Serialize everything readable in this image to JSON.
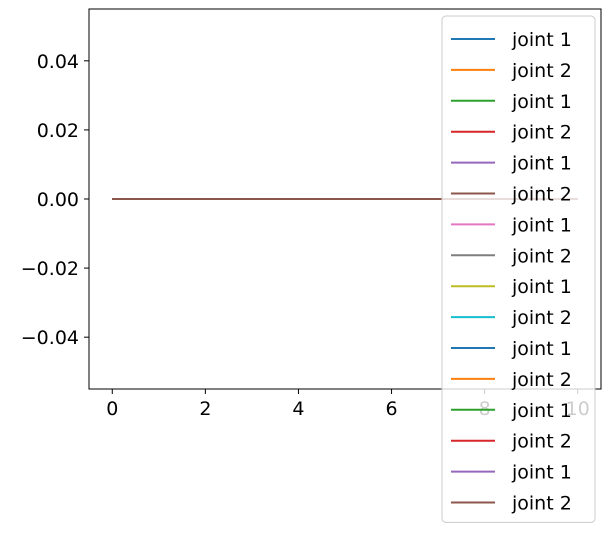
{
  "chart_data": {
    "type": "line",
    "title": "",
    "xlabel": "",
    "ylabel": "",
    "x": [
      0,
      1,
      2,
      3,
      4,
      5,
      6,
      7,
      8,
      9,
      10
    ],
    "xlim": [
      -0.5,
      10.5
    ],
    "ylim": [
      -0.055,
      0.055
    ],
    "x_ticks": [
      0,
      2,
      4,
      6,
      8,
      10
    ],
    "x_tick_labels": [
      "0",
      "2",
      "4",
      "6",
      "8",
      "10"
    ],
    "y_ticks": [
      0.04,
      0.02,
      0.0,
      -0.02,
      -0.04
    ],
    "y_tick_labels": [
      "0.04",
      "0.02",
      "0.00",
      "−0.02",
      "−0.04"
    ],
    "grid": false,
    "legend_position": "right",
    "series": [
      {
        "name": "joint 1",
        "color": "#1f77b4",
        "values": [
          0,
          0,
          0,
          0,
          0,
          0,
          0,
          0,
          0,
          0,
          0
        ]
      },
      {
        "name": "joint 2",
        "color": "#ff7f0e",
        "values": [
          0,
          0,
          0,
          0,
          0,
          0,
          0,
          0,
          0,
          0,
          0
        ]
      },
      {
        "name": "joint 1",
        "color": "#2ca02c",
        "values": [
          0,
          0,
          0,
          0,
          0,
          0,
          0,
          0,
          0,
          0,
          0
        ]
      },
      {
        "name": "joint 2",
        "color": "#d62728",
        "values": [
          0,
          0,
          0,
          0,
          0,
          0,
          0,
          0,
          0,
          0,
          0
        ]
      },
      {
        "name": "joint 1",
        "color": "#9467bd",
        "values": [
          0,
          0,
          0,
          0,
          0,
          0,
          0,
          0,
          0,
          0,
          0
        ]
      },
      {
        "name": "joint 2",
        "color": "#8c564b",
        "values": [
          0,
          0,
          0,
          0,
          0,
          0,
          0,
          0,
          0,
          0,
          0
        ]
      },
      {
        "name": "joint 1",
        "color": "#e377c2",
        "values": [
          0,
          0,
          0,
          0,
          0,
          0,
          0,
          0,
          0,
          0,
          0
        ]
      },
      {
        "name": "joint 2",
        "color": "#7f7f7f",
        "values": [
          0,
          0,
          0,
          0,
          0,
          0,
          0,
          0,
          0,
          0,
          0
        ]
      },
      {
        "name": "joint 1",
        "color": "#bcbd22",
        "values": [
          0,
          0,
          0,
          0,
          0,
          0,
          0,
          0,
          0,
          0,
          0
        ]
      },
      {
        "name": "joint 2",
        "color": "#17becf",
        "values": [
          0,
          0,
          0,
          0,
          0,
          0,
          0,
          0,
          0,
          0,
          0
        ]
      },
      {
        "name": "joint 1",
        "color": "#1f77b4",
        "values": [
          0,
          0,
          0,
          0,
          0,
          0,
          0,
          0,
          0,
          0,
          0
        ]
      },
      {
        "name": "joint 2",
        "color": "#ff7f0e",
        "values": [
          0,
          0,
          0,
          0,
          0,
          0,
          0,
          0,
          0,
          0,
          0
        ]
      },
      {
        "name": "joint 1",
        "color": "#2ca02c",
        "values": [
          0,
          0,
          0,
          0,
          0,
          0,
          0,
          0,
          0,
          0,
          0
        ]
      },
      {
        "name": "joint 2",
        "color": "#d62728",
        "values": [
          0,
          0,
          0,
          0,
          0,
          0,
          0,
          0,
          0,
          0,
          0
        ]
      },
      {
        "name": "joint 1",
        "color": "#9467bd",
        "values": [
          0,
          0,
          0,
          0,
          0,
          0,
          0,
          0,
          0,
          0,
          0
        ]
      },
      {
        "name": "joint 2",
        "color": "#8c564b",
        "values": [
          0,
          0,
          0,
          0,
          0,
          0,
          0,
          0,
          0,
          0,
          0
        ]
      }
    ]
  }
}
